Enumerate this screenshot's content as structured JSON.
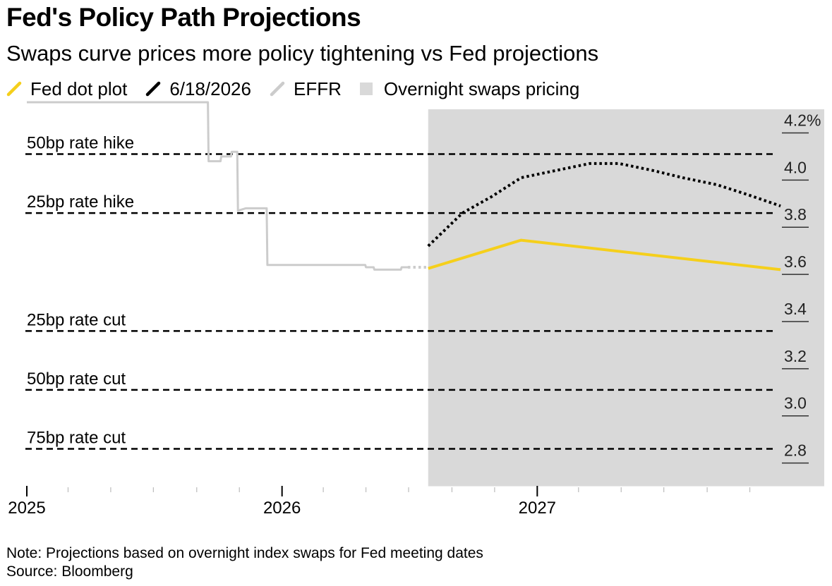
{
  "header": {
    "title": "Fed's Policy Path Projections",
    "subtitle": "Swaps curve prices more policy tightening vs Fed projections"
  },
  "legend": [
    {
      "label": "Fed dot plot",
      "kind": "line",
      "color": "#f5cf1b"
    },
    {
      "label": "6/18/2026",
      "kind": "line",
      "color": "#000000"
    },
    {
      "label": "EFFR",
      "kind": "line",
      "color": "#cccccc"
    },
    {
      "label": "Overnight swaps pricing",
      "kind": "box",
      "color": "#d9d9d9"
    }
  ],
  "footer": {
    "note": "Note: Projections based on overnight index swaps for Fed meeting dates",
    "source": "Source: Bloomberg"
  },
  "chart_data": {
    "type": "line",
    "xlim": [
      "2025-01-01",
      "2027-12-31"
    ],
    "ylim": [
      2.7,
      4.3
    ],
    "x_ticks": [
      {
        "date": "2025-01-01",
        "label": "2025"
      },
      {
        "date": "2026-01-01",
        "label": "2026"
      },
      {
        "date": "2027-01-01",
        "label": "2027"
      }
    ],
    "y_ticks": [
      {
        "value": 4.2,
        "label": "4.2%"
      },
      {
        "value": 4.0,
        "label": "4.0"
      },
      {
        "value": 3.8,
        "label": "3.8"
      },
      {
        "value": 3.6,
        "label": "3.6"
      },
      {
        "value": 3.4,
        "label": "3.4"
      },
      {
        "value": 3.2,
        "label": "3.2"
      },
      {
        "value": 3.0,
        "label": "3.0"
      },
      {
        "value": 2.8,
        "label": "2.8"
      }
    ],
    "shaded_region": {
      "label": "Overnight swaps pricing",
      "start": "2026-07-29",
      "color": "#d9d9d9"
    },
    "reference_lines": [
      {
        "label": "50bp rate hike",
        "value": 4.11
      },
      {
        "label": "25bp rate hike",
        "value": 3.86
      },
      {
        "label": "25bp rate cut",
        "value": 3.36
      },
      {
        "label": "50bp rate cut",
        "value": 3.11
      },
      {
        "label": "75bp rate cut",
        "value": 2.86
      }
    ],
    "series": [
      {
        "name": "EFFR",
        "color": "#cccccc",
        "style": "solid",
        "points": [
          [
            "2025-01-01",
            4.33
          ],
          [
            "2025-09-17",
            4.33
          ],
          [
            "2025-09-18",
            4.08
          ],
          [
            "2025-10-05",
            4.08
          ],
          [
            "2025-10-06",
            4.1
          ],
          [
            "2025-10-20",
            4.1
          ],
          [
            "2025-10-21",
            4.12
          ],
          [
            "2025-10-29",
            4.12
          ],
          [
            "2025-10-30",
            3.87
          ],
          [
            "2025-11-10",
            3.88
          ],
          [
            "2025-12-10",
            3.88
          ],
          [
            "2025-12-11",
            3.64
          ],
          [
            "2026-04-30",
            3.64
          ],
          [
            "2026-05-01",
            3.63
          ],
          [
            "2026-05-12",
            3.63
          ],
          [
            "2026-05-13",
            3.62
          ],
          [
            "2026-06-20",
            3.62
          ],
          [
            "2026-06-21",
            3.63
          ],
          [
            "2026-06-30",
            3.63
          ]
        ]
      },
      {
        "name": "EFFR",
        "color": "#cccccc",
        "style": "dotted",
        "points": [
          [
            "2026-06-30",
            3.63
          ],
          [
            "2026-07-29",
            3.63
          ]
        ]
      },
      {
        "name": "Fed dot plot",
        "color": "#f5cf1b",
        "style": "solid",
        "points": [
          [
            "2026-07-29",
            3.625
          ],
          [
            "2026-12-09",
            3.745
          ],
          [
            "2027-12-15",
            3.62
          ]
        ]
      },
      {
        "name": "6/18/2026",
        "color": "#000000",
        "style": "dotted",
        "points": [
          [
            "2026-07-29",
            3.72
          ],
          [
            "2026-09-16",
            3.86
          ],
          [
            "2026-10-28",
            3.93
          ],
          [
            "2026-12-09",
            4.01
          ],
          [
            "2027-01-27",
            4.04
          ],
          [
            "2027-03-17",
            4.07
          ],
          [
            "2027-04-28",
            4.07
          ],
          [
            "2027-06-16",
            4.04
          ],
          [
            "2027-07-28",
            4.01
          ],
          [
            "2027-09-15",
            3.98
          ],
          [
            "2027-10-27",
            3.94
          ],
          [
            "2027-12-15",
            3.89
          ]
        ]
      }
    ]
  }
}
